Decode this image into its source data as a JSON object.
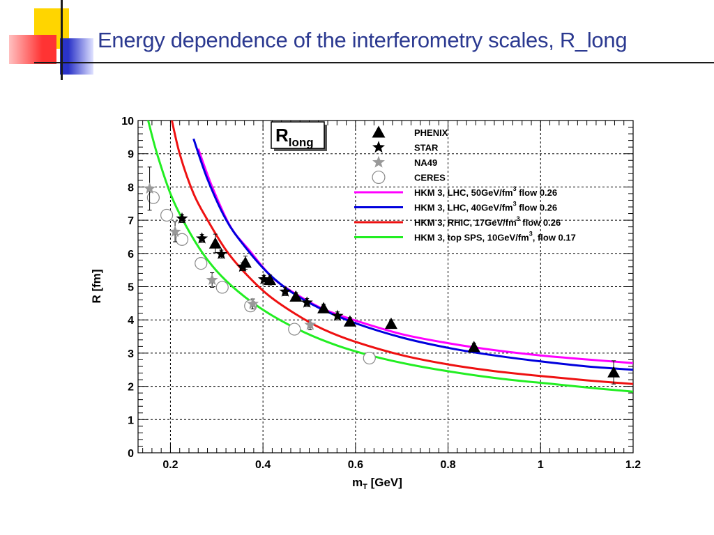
{
  "slide": {
    "title": "Energy dependence of the interferometry scales, R_long",
    "colors": {
      "title": "#2b3990",
      "deco_yellow": "#ffd500",
      "deco_red": "#ff3333",
      "deco_blue": "#2a33c8",
      "deco_line": "#1a1a1a"
    }
  },
  "chart_data": {
    "type": "scatter",
    "title": "",
    "panel_label": {
      "main": "R",
      "sub": "long"
    },
    "xlabel": {
      "main": "m",
      "sub": "T",
      "unit": " [GeV]"
    },
    "ylabel": "R [fm]",
    "xlim": [
      0.13,
      1.2
    ],
    "ylim": [
      0,
      10
    ],
    "xticks": [
      0.2,
      0.4,
      0.6,
      0.8,
      1,
      1.2
    ],
    "xtick_labels": [
      "0.2",
      "0.4",
      "0.6",
      "0.8",
      "1",
      "1.2"
    ],
    "yticks": [
      0,
      1,
      2,
      3,
      4,
      5,
      6,
      7,
      8,
      9,
      10
    ],
    "ytick_labels": [
      "0",
      "1",
      "2",
      "3",
      "4",
      "5",
      "6",
      "7",
      "8",
      "9",
      "10"
    ],
    "grid": true,
    "legend_position": "top-right",
    "series": [
      {
        "name": "PHENIX",
        "kind": "points",
        "marker": "triangle",
        "color": "#000000",
        "x": [
          0.297,
          0.362,
          0.415,
          0.471,
          0.531,
          0.588,
          0.677,
          0.856,
          1.158
        ],
        "y": [
          6.3,
          5.72,
          5.2,
          4.7,
          4.35,
          3.95,
          3.88,
          3.18,
          2.42
        ],
        "err": [
          0.28,
          0.2,
          0.15,
          0.12,
          0.12,
          0.12,
          0.12,
          0.12,
          0.35
        ]
      },
      {
        "name": "STAR",
        "kind": "points",
        "marker": "star",
        "color": "#000000",
        "x": [
          0.225,
          0.268,
          0.31,
          0.356,
          0.402,
          0.448,
          0.495,
          0.561
        ],
        "y": [
          7.05,
          6.45,
          5.98,
          5.6,
          5.22,
          4.85,
          4.52,
          4.12
        ],
        "err": [
          0.12,
          0.12,
          0.12,
          0.12,
          0.12,
          0.12,
          0.12,
          0.12
        ]
      },
      {
        "name": "NA49",
        "kind": "points",
        "marker": "star",
        "color": "#999999",
        "x": [
          0.155,
          0.21,
          0.29,
          0.378,
          0.502
        ],
        "y": [
          7.95,
          6.65,
          5.2,
          4.48,
          3.85
        ],
        "err": [
          0.65,
          0.3,
          0.22,
          0.15,
          0.15
        ]
      },
      {
        "name": "CERES",
        "kind": "points",
        "marker": "circle",
        "color": "#888888",
        "x": [
          0.163,
          0.192,
          0.225,
          0.266,
          0.312,
          0.373,
          0.468,
          0.63
        ],
        "y": [
          7.68,
          7.15,
          6.42,
          5.7,
          4.98,
          4.42,
          3.72,
          2.85
        ],
        "err": [
          0,
          0,
          0,
          0,
          0,
          0,
          0,
          0
        ]
      },
      {
        "name": "HKM 3, LHC, 50GeV/fm",
        "sup": "3",
        "tail": " flow 0.26",
        "kind": "line",
        "color": "#ff00ff",
        "x": [
          0.26,
          0.29,
          0.33,
          0.37,
          0.42,
          0.47,
          0.53,
          0.6,
          0.7,
          0.8,
          0.9,
          1.0,
          1.1,
          1.2
        ],
        "y": [
          9.15,
          8.01,
          6.8,
          6.1,
          5.28,
          4.79,
          4.33,
          3.98,
          3.57,
          3.3,
          3.09,
          2.93,
          2.81,
          2.7
        ]
      },
      {
        "name": "HKM 3, LHC, 40GeV/fm",
        "sup": "3",
        "tail": " flow 0.26",
        "kind": "line",
        "color": "#0000dd",
        "x": [
          0.25,
          0.28,
          0.32,
          0.36,
          0.41,
          0.46,
          0.52,
          0.6,
          0.7,
          0.8,
          0.9,
          1.0,
          1.1,
          1.2
        ],
        "y": [
          9.45,
          8.24,
          7.02,
          6.22,
          5.42,
          4.85,
          4.37,
          3.9,
          3.47,
          3.16,
          2.93,
          2.75,
          2.6,
          2.5
        ]
      },
      {
        "name": "HKM 3, RHIC, 17GeV/fm",
        "sup": "3",
        "tail": " flow 0.26",
        "kind": "line",
        "color": "#ee1111",
        "x": [
          0.2,
          0.22,
          0.25,
          0.28,
          0.32,
          0.36,
          0.41,
          0.47,
          0.53,
          0.6,
          0.7,
          0.8,
          0.9,
          1.0,
          1.1,
          1.2
        ],
        "y": [
          10.2,
          9.0,
          7.8,
          7.01,
          6.1,
          5.43,
          4.76,
          4.18,
          3.72,
          3.34,
          2.94,
          2.66,
          2.46,
          2.31,
          2.18,
          2.07
        ]
      },
      {
        "name": "HKM 3, top SPS, 10GeV/fm",
        "sup": "3",
        "tail": ", flow 0.17",
        "kind": "line",
        "color": "#22ee22",
        "x": [
          0.15,
          0.17,
          0.2,
          0.23,
          0.27,
          0.31,
          0.36,
          0.42,
          0.49,
          0.56,
          0.64,
          0.72,
          0.82,
          0.92,
          1.02,
          1.12,
          1.2
        ],
        "y": [
          10.1,
          9.05,
          7.8,
          6.92,
          6.0,
          5.32,
          4.7,
          4.13,
          3.62,
          3.23,
          2.9,
          2.65,
          2.41,
          2.22,
          2.08,
          1.94,
          1.84
        ]
      }
    ]
  }
}
